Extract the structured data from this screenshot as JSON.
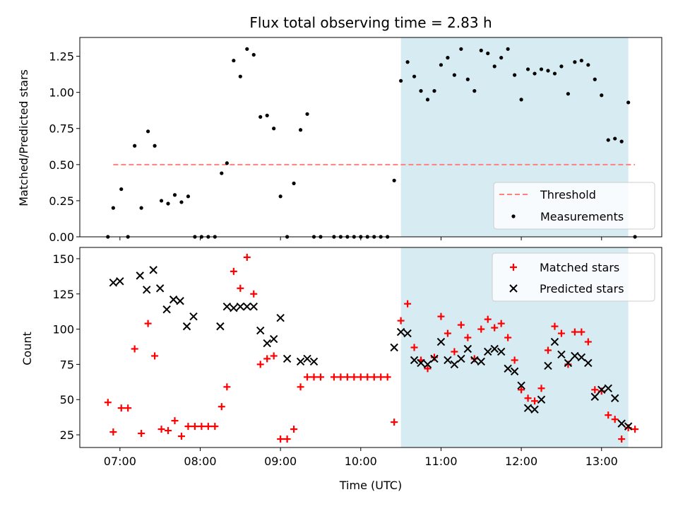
{
  "chart_data": [
    {
      "type": "scatter",
      "title": "Flux total observing time = 2.83 h",
      "ylabel": "Matched/Predicted stars",
      "xlabel": "",
      "ylim": [
        0,
        1.38
      ],
      "yticks": [
        "0.00",
        "0.25",
        "0.50",
        "0.75",
        "1.00",
        "1.25"
      ],
      "shaded_region": {
        "start": "10:30",
        "end": "13:20",
        "color": "#add8e6"
      },
      "threshold": {
        "name": "Threshold",
        "value": 0.5,
        "from": "06:55",
        "to": "13:25",
        "color": "#ff7f7f",
        "style": "dashed"
      },
      "legend": {
        "placement": "lower-right",
        "entries": [
          "Threshold",
          "Measurements"
        ]
      },
      "series": [
        {
          "name": "Measurements",
          "marker": "dot",
          "color": "#000000",
          "points": [
            [
              "06:51",
              0
            ],
            [
              "06:55",
              0.2
            ],
            [
              "07:01",
              0.33
            ],
            [
              "07:06",
              0
            ],
            [
              "07:11",
              0.63
            ],
            [
              "07:16",
              0.2
            ],
            [
              "07:21",
              0.73
            ],
            [
              "07:26",
              0.63
            ],
            [
              "07:31",
              0.25
            ],
            [
              "07:36",
              0.23
            ],
            [
              "07:41",
              0.29
            ],
            [
              "07:46",
              0.24
            ],
            [
              "07:51",
              0.28
            ],
            [
              "07:56",
              0
            ],
            [
              "08:01",
              0
            ],
            [
              "08:06",
              0
            ],
            [
              "08:11",
              0
            ],
            [
              "08:16",
              0.44
            ],
            [
              "08:20",
              0.51
            ],
            [
              "08:25",
              1.22
            ],
            [
              "08:30",
              1.11
            ],
            [
              "08:35",
              1.3
            ],
            [
              "08:40",
              1.26
            ],
            [
              "08:45",
              0.83
            ],
            [
              "08:50",
              0.84
            ],
            [
              "08:55",
              0.75
            ],
            [
              "09:00",
              0.28
            ],
            [
              "09:05",
              0
            ],
            [
              "09:10",
              0.37
            ],
            [
              "09:15",
              0.74
            ],
            [
              "09:20",
              0.85
            ],
            [
              "09:25",
              0
            ],
            [
              "09:30",
              0
            ],
            [
              "09:40",
              0
            ],
            [
              "09:45",
              0
            ],
            [
              "09:50",
              0
            ],
            [
              "09:55",
              0
            ],
            [
              "10:00",
              0
            ],
            [
              "10:05",
              0
            ],
            [
              "10:10",
              0
            ],
            [
              "10:15",
              0
            ],
            [
              "10:20",
              0
            ],
            [
              "10:25",
              0.39
            ],
            [
              "10:30",
              1.08
            ],
            [
              "10:35",
              1.21
            ],
            [
              "10:40",
              1.11
            ],
            [
              "10:45",
              1.01
            ],
            [
              "10:50",
              0.95
            ],
            [
              "10:55",
              1.01
            ],
            [
              "11:00",
              1.19
            ],
            [
              "11:05",
              1.24
            ],
            [
              "11:10",
              1.12
            ],
            [
              "11:15",
              1.3
            ],
            [
              "11:20",
              1.09
            ],
            [
              "11:25",
              1.01
            ],
            [
              "11:30",
              1.29
            ],
            [
              "11:35",
              1.27
            ],
            [
              "11:40",
              1.18
            ],
            [
              "11:45",
              1.24
            ],
            [
              "11:50",
              1.3
            ],
            [
              "11:55",
              1.12
            ],
            [
              "12:00",
              0.95
            ],
            [
              "12:05",
              1.16
            ],
            [
              "12:10",
              1.13
            ],
            [
              "12:15",
              1.16
            ],
            [
              "12:20",
              1.15
            ],
            [
              "12:25",
              1.13
            ],
            [
              "12:30",
              1.18
            ],
            [
              "12:35",
              0.99
            ],
            [
              "12:40",
              1.21
            ],
            [
              "12:45",
              1.22
            ],
            [
              "12:50",
              1.19
            ],
            [
              "12:55",
              1.09
            ],
            [
              "13:00",
              0.98
            ],
            [
              "13:05",
              0.67
            ],
            [
              "13:10",
              0.68
            ],
            [
              "13:15",
              0.66
            ],
            [
              "13:20",
              0.93
            ],
            [
              "13:25",
              0
            ]
          ]
        }
      ]
    },
    {
      "type": "scatter",
      "title": "",
      "ylabel": "Count",
      "xlabel": "Time (UTC)",
      "ylim": [
        16,
        158
      ],
      "yticks": [
        "25",
        "50",
        "75",
        "100",
        "125",
        "150"
      ],
      "xlim": [
        "06:30",
        "13:45"
      ],
      "xticks": [
        "07:00",
        "08:00",
        "09:00",
        "10:00",
        "11:00",
        "12:00",
        "13:00"
      ],
      "shaded_region": {
        "start": "10:30",
        "end": "13:20",
        "color": "#add8e6"
      },
      "legend": {
        "placement": "top-right",
        "entries": [
          "Matched stars",
          "Predicted stars"
        ]
      },
      "series": [
        {
          "name": "Matched stars",
          "marker": "plus",
          "color": "#ff0000",
          "points": [
            [
              "06:51",
              48
            ],
            [
              "06:55",
              27
            ],
            [
              "07:01",
              44
            ],
            [
              "07:06",
              44
            ],
            [
              "07:11",
              86
            ],
            [
              "07:16",
              26
            ],
            [
              "07:21",
              104
            ],
            [
              "07:26",
              81
            ],
            [
              "07:31",
              29
            ],
            [
              "07:36",
              28
            ],
            [
              "07:41",
              35
            ],
            [
              "07:46",
              24
            ],
            [
              "07:51",
              31
            ],
            [
              "07:56",
              31
            ],
            [
              "08:01",
              31
            ],
            [
              "08:06",
              31
            ],
            [
              "08:11",
              31
            ],
            [
              "08:16",
              45
            ],
            [
              "08:20",
              59
            ],
            [
              "08:25",
              141
            ],
            [
              "08:30",
              129
            ],
            [
              "08:35",
              151
            ],
            [
              "08:40",
              125
            ],
            [
              "08:45",
              75
            ],
            [
              "08:50",
              79
            ],
            [
              "08:55",
              81
            ],
            [
              "09:00",
              22
            ],
            [
              "09:05",
              22
            ],
            [
              "09:10",
              29
            ],
            [
              "09:15",
              59
            ],
            [
              "09:20",
              66
            ],
            [
              "09:25",
              66
            ],
            [
              "09:30",
              66
            ],
            [
              "09:40",
              66
            ],
            [
              "09:45",
              66
            ],
            [
              "09:50",
              66
            ],
            [
              "09:55",
              66
            ],
            [
              "10:00",
              66
            ],
            [
              "10:05",
              66
            ],
            [
              "10:10",
              66
            ],
            [
              "10:15",
              66
            ],
            [
              "10:20",
              66
            ],
            [
              "10:25",
              34
            ],
            [
              "10:30",
              106
            ],
            [
              "10:35",
              118
            ],
            [
              "10:40",
              87
            ],
            [
              "10:45",
              78
            ],
            [
              "10:50",
              72
            ],
            [
              "10:55",
              80
            ],
            [
              "11:00",
              109
            ],
            [
              "11:05",
              97
            ],
            [
              "11:10",
              84
            ],
            [
              "11:15",
              103
            ],
            [
              "11:20",
              94
            ],
            [
              "11:25",
              79
            ],
            [
              "11:30",
              100
            ],
            [
              "11:35",
              107
            ],
            [
              "11:40",
              101
            ],
            [
              "11:45",
              104
            ],
            [
              "11:50",
              94
            ],
            [
              "11:55",
              78
            ],
            [
              "12:00",
              57
            ],
            [
              "12:05",
              51
            ],
            [
              "12:10",
              49
            ],
            [
              "12:15",
              58
            ],
            [
              "12:20",
              85
            ],
            [
              "12:25",
              102
            ],
            [
              "12:30",
              97
            ],
            [
              "12:35",
              75
            ],
            [
              "12:40",
              98
            ],
            [
              "12:45",
              98
            ],
            [
              "12:50",
              91
            ],
            [
              "12:55",
              57
            ],
            [
              "13:00",
              56
            ],
            [
              "13:05",
              39
            ],
            [
              "13:10",
              36
            ],
            [
              "13:15",
              22
            ],
            [
              "13:20",
              30
            ],
            [
              "13:25",
              29
            ]
          ]
        },
        {
          "name": "Predicted stars",
          "marker": "x",
          "color": "#000000",
          "points": [
            [
              "06:55",
              133
            ],
            [
              "07:00",
              134
            ],
            [
              "07:15",
              138
            ],
            [
              "07:20",
              128
            ],
            [
              "07:25",
              142
            ],
            [
              "07:30",
              129
            ],
            [
              "07:35",
              114
            ],
            [
              "07:40",
              121
            ],
            [
              "07:45",
              120
            ],
            [
              "07:50",
              102
            ],
            [
              "07:55",
              109
            ],
            [
              "08:15",
              102
            ],
            [
              "08:20",
              116
            ],
            [
              "08:25",
              115
            ],
            [
              "08:30",
              116
            ],
            [
              "08:35",
              116
            ],
            [
              "08:40",
              116
            ],
            [
              "08:45",
              99
            ],
            [
              "08:50",
              90
            ],
            [
              "08:55",
              93
            ],
            [
              "09:00",
              108
            ],
            [
              "09:05",
              79
            ],
            [
              "09:15",
              77
            ],
            [
              "09:20",
              79
            ],
            [
              "09:25",
              77
            ],
            [
              "10:25",
              87
            ],
            [
              "10:30",
              98
            ],
            [
              "10:35",
              97
            ],
            [
              "10:40",
              78
            ],
            [
              "10:45",
              76
            ],
            [
              "10:50",
              75
            ],
            [
              "10:55",
              79
            ],
            [
              "11:00",
              91
            ],
            [
              "11:05",
              78
            ],
            [
              "11:10",
              75
            ],
            [
              "11:15",
              79
            ],
            [
              "11:20",
              86
            ],
            [
              "11:25",
              78
            ],
            [
              "11:30",
              77
            ],
            [
              "11:35",
              84
            ],
            [
              "11:40",
              86
            ],
            [
              "11:45",
              84
            ],
            [
              "11:50",
              72
            ],
            [
              "11:55",
              70
            ],
            [
              "12:00",
              60
            ],
            [
              "12:05",
              44
            ],
            [
              "12:10",
              43
            ],
            [
              "12:15",
              50
            ],
            [
              "12:20",
              74
            ],
            [
              "12:25",
              91
            ],
            [
              "12:30",
              82
            ],
            [
              "12:35",
              76
            ],
            [
              "12:40",
              81
            ],
            [
              "12:45",
              80
            ],
            [
              "12:50",
              76
            ],
            [
              "12:55",
              52
            ],
            [
              "13:00",
              57
            ],
            [
              "13:05",
              58
            ],
            [
              "13:10",
              51
            ],
            [
              "13:15",
              33
            ],
            [
              "13:20",
              31
            ]
          ]
        }
      ]
    }
  ]
}
